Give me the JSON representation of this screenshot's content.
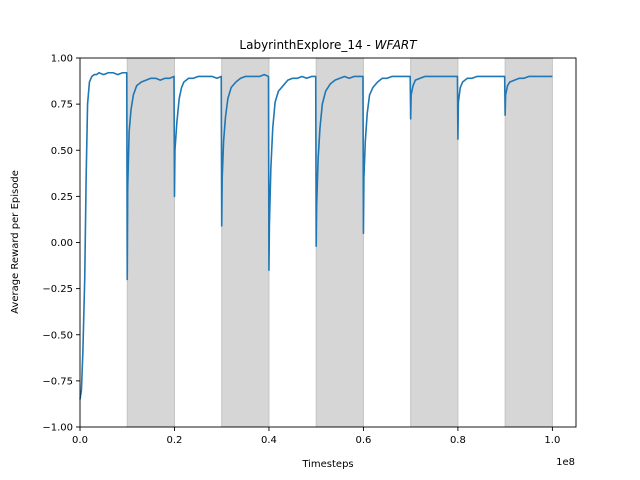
{
  "chart_data": {
    "type": "line",
    "title_prefix": "LabyrinthExplore_14 - ",
    "title_italic": "WFART",
    "xlabel": "Timesteps",
    "ylabel": "Average Reward per Episode",
    "x_offset_label": "1e8",
    "xlim": [
      0.0,
      1.05
    ],
    "ylim": [
      -1.0,
      1.0
    ],
    "x_ticks": [
      0.0,
      0.2,
      0.4,
      0.6,
      0.8,
      1.0
    ],
    "x_tick_labels": [
      "0.0",
      "0.2",
      "0.4",
      "0.6",
      "0.8",
      "1.0"
    ],
    "y_ticks": [
      -1.0,
      -0.75,
      -0.5,
      -0.25,
      0.0,
      0.25,
      0.5,
      0.75,
      1.0
    ],
    "y_tick_labels": [
      "−1.00",
      "−0.75",
      "−0.50",
      "−0.25",
      "0.00",
      "0.25",
      "0.50",
      "0.75",
      "1.00"
    ],
    "grid": false,
    "shaded_regions": [
      [
        0.1,
        0.2
      ],
      [
        0.3,
        0.4
      ],
      [
        0.5,
        0.6
      ],
      [
        0.7,
        0.8
      ],
      [
        0.9,
        1.0
      ]
    ],
    "colors": {
      "line": "#1f77b4",
      "shade": "#d6d6d6"
    },
    "series": [
      {
        "x": [
          0.0,
          0.003,
          0.006,
          0.01,
          0.013,
          0.016,
          0.02,
          0.025,
          0.03,
          0.035,
          0.04,
          0.05,
          0.06,
          0.07,
          0.08,
          0.09,
          0.099,
          0.1,
          0.101,
          0.104,
          0.108,
          0.113,
          0.12,
          0.13,
          0.14,
          0.15,
          0.16,
          0.17,
          0.18,
          0.19,
          0.199,
          0.2,
          0.201,
          0.205,
          0.21,
          0.215,
          0.22,
          0.23,
          0.24,
          0.25,
          0.26,
          0.27,
          0.28,
          0.29,
          0.299,
          0.3,
          0.301,
          0.304,
          0.308,
          0.313,
          0.32,
          0.33,
          0.34,
          0.35,
          0.36,
          0.37,
          0.38,
          0.39,
          0.399,
          0.4,
          0.401,
          0.404,
          0.408,
          0.413,
          0.42,
          0.43,
          0.44,
          0.45,
          0.46,
          0.47,
          0.48,
          0.49,
          0.499,
          0.5,
          0.501,
          0.504,
          0.508,
          0.513,
          0.52,
          0.53,
          0.54,
          0.55,
          0.56,
          0.57,
          0.58,
          0.59,
          0.599,
          0.6,
          0.601,
          0.604,
          0.608,
          0.613,
          0.62,
          0.63,
          0.64,
          0.65,
          0.66,
          0.67,
          0.68,
          0.69,
          0.699,
          0.7,
          0.701,
          0.705,
          0.71,
          0.72,
          0.73,
          0.74,
          0.75,
          0.76,
          0.77,
          0.78,
          0.79,
          0.799,
          0.8,
          0.801,
          0.805,
          0.81,
          0.82,
          0.83,
          0.84,
          0.85,
          0.86,
          0.87,
          0.88,
          0.89,
          0.899,
          0.9,
          0.901,
          0.905,
          0.91,
          0.92,
          0.93,
          0.94,
          0.95,
          0.96,
          0.97,
          0.98,
          0.99,
          1.0
        ],
        "y": [
          -0.85,
          -0.8,
          -0.6,
          -0.2,
          0.35,
          0.75,
          0.87,
          0.9,
          0.91,
          0.91,
          0.92,
          0.91,
          0.92,
          0.92,
          0.91,
          0.92,
          0.92,
          -0.2,
          0.3,
          0.6,
          0.72,
          0.8,
          0.85,
          0.87,
          0.88,
          0.89,
          0.89,
          0.88,
          0.89,
          0.89,
          0.9,
          0.25,
          0.5,
          0.65,
          0.78,
          0.84,
          0.87,
          0.89,
          0.89,
          0.9,
          0.9,
          0.9,
          0.9,
          0.89,
          0.9,
          0.09,
          0.35,
          0.55,
          0.68,
          0.78,
          0.84,
          0.87,
          0.89,
          0.9,
          0.9,
          0.9,
          0.9,
          0.91,
          0.9,
          -0.15,
          0.1,
          0.4,
          0.62,
          0.76,
          0.82,
          0.85,
          0.88,
          0.89,
          0.89,
          0.9,
          0.89,
          0.9,
          0.9,
          -0.02,
          0.2,
          0.45,
          0.62,
          0.75,
          0.82,
          0.86,
          0.88,
          0.89,
          0.9,
          0.89,
          0.9,
          0.9,
          0.9,
          0.05,
          0.35,
          0.55,
          0.7,
          0.8,
          0.84,
          0.87,
          0.89,
          0.89,
          0.9,
          0.9,
          0.9,
          0.9,
          0.9,
          0.67,
          0.8,
          0.85,
          0.88,
          0.89,
          0.9,
          0.9,
          0.9,
          0.9,
          0.9,
          0.9,
          0.9,
          0.9,
          0.56,
          0.76,
          0.84,
          0.87,
          0.89,
          0.89,
          0.9,
          0.9,
          0.9,
          0.9,
          0.9,
          0.9,
          0.9,
          0.69,
          0.8,
          0.85,
          0.87,
          0.88,
          0.89,
          0.89,
          0.9,
          0.9,
          0.9,
          0.9,
          0.9,
          0.9
        ]
      }
    ]
  }
}
